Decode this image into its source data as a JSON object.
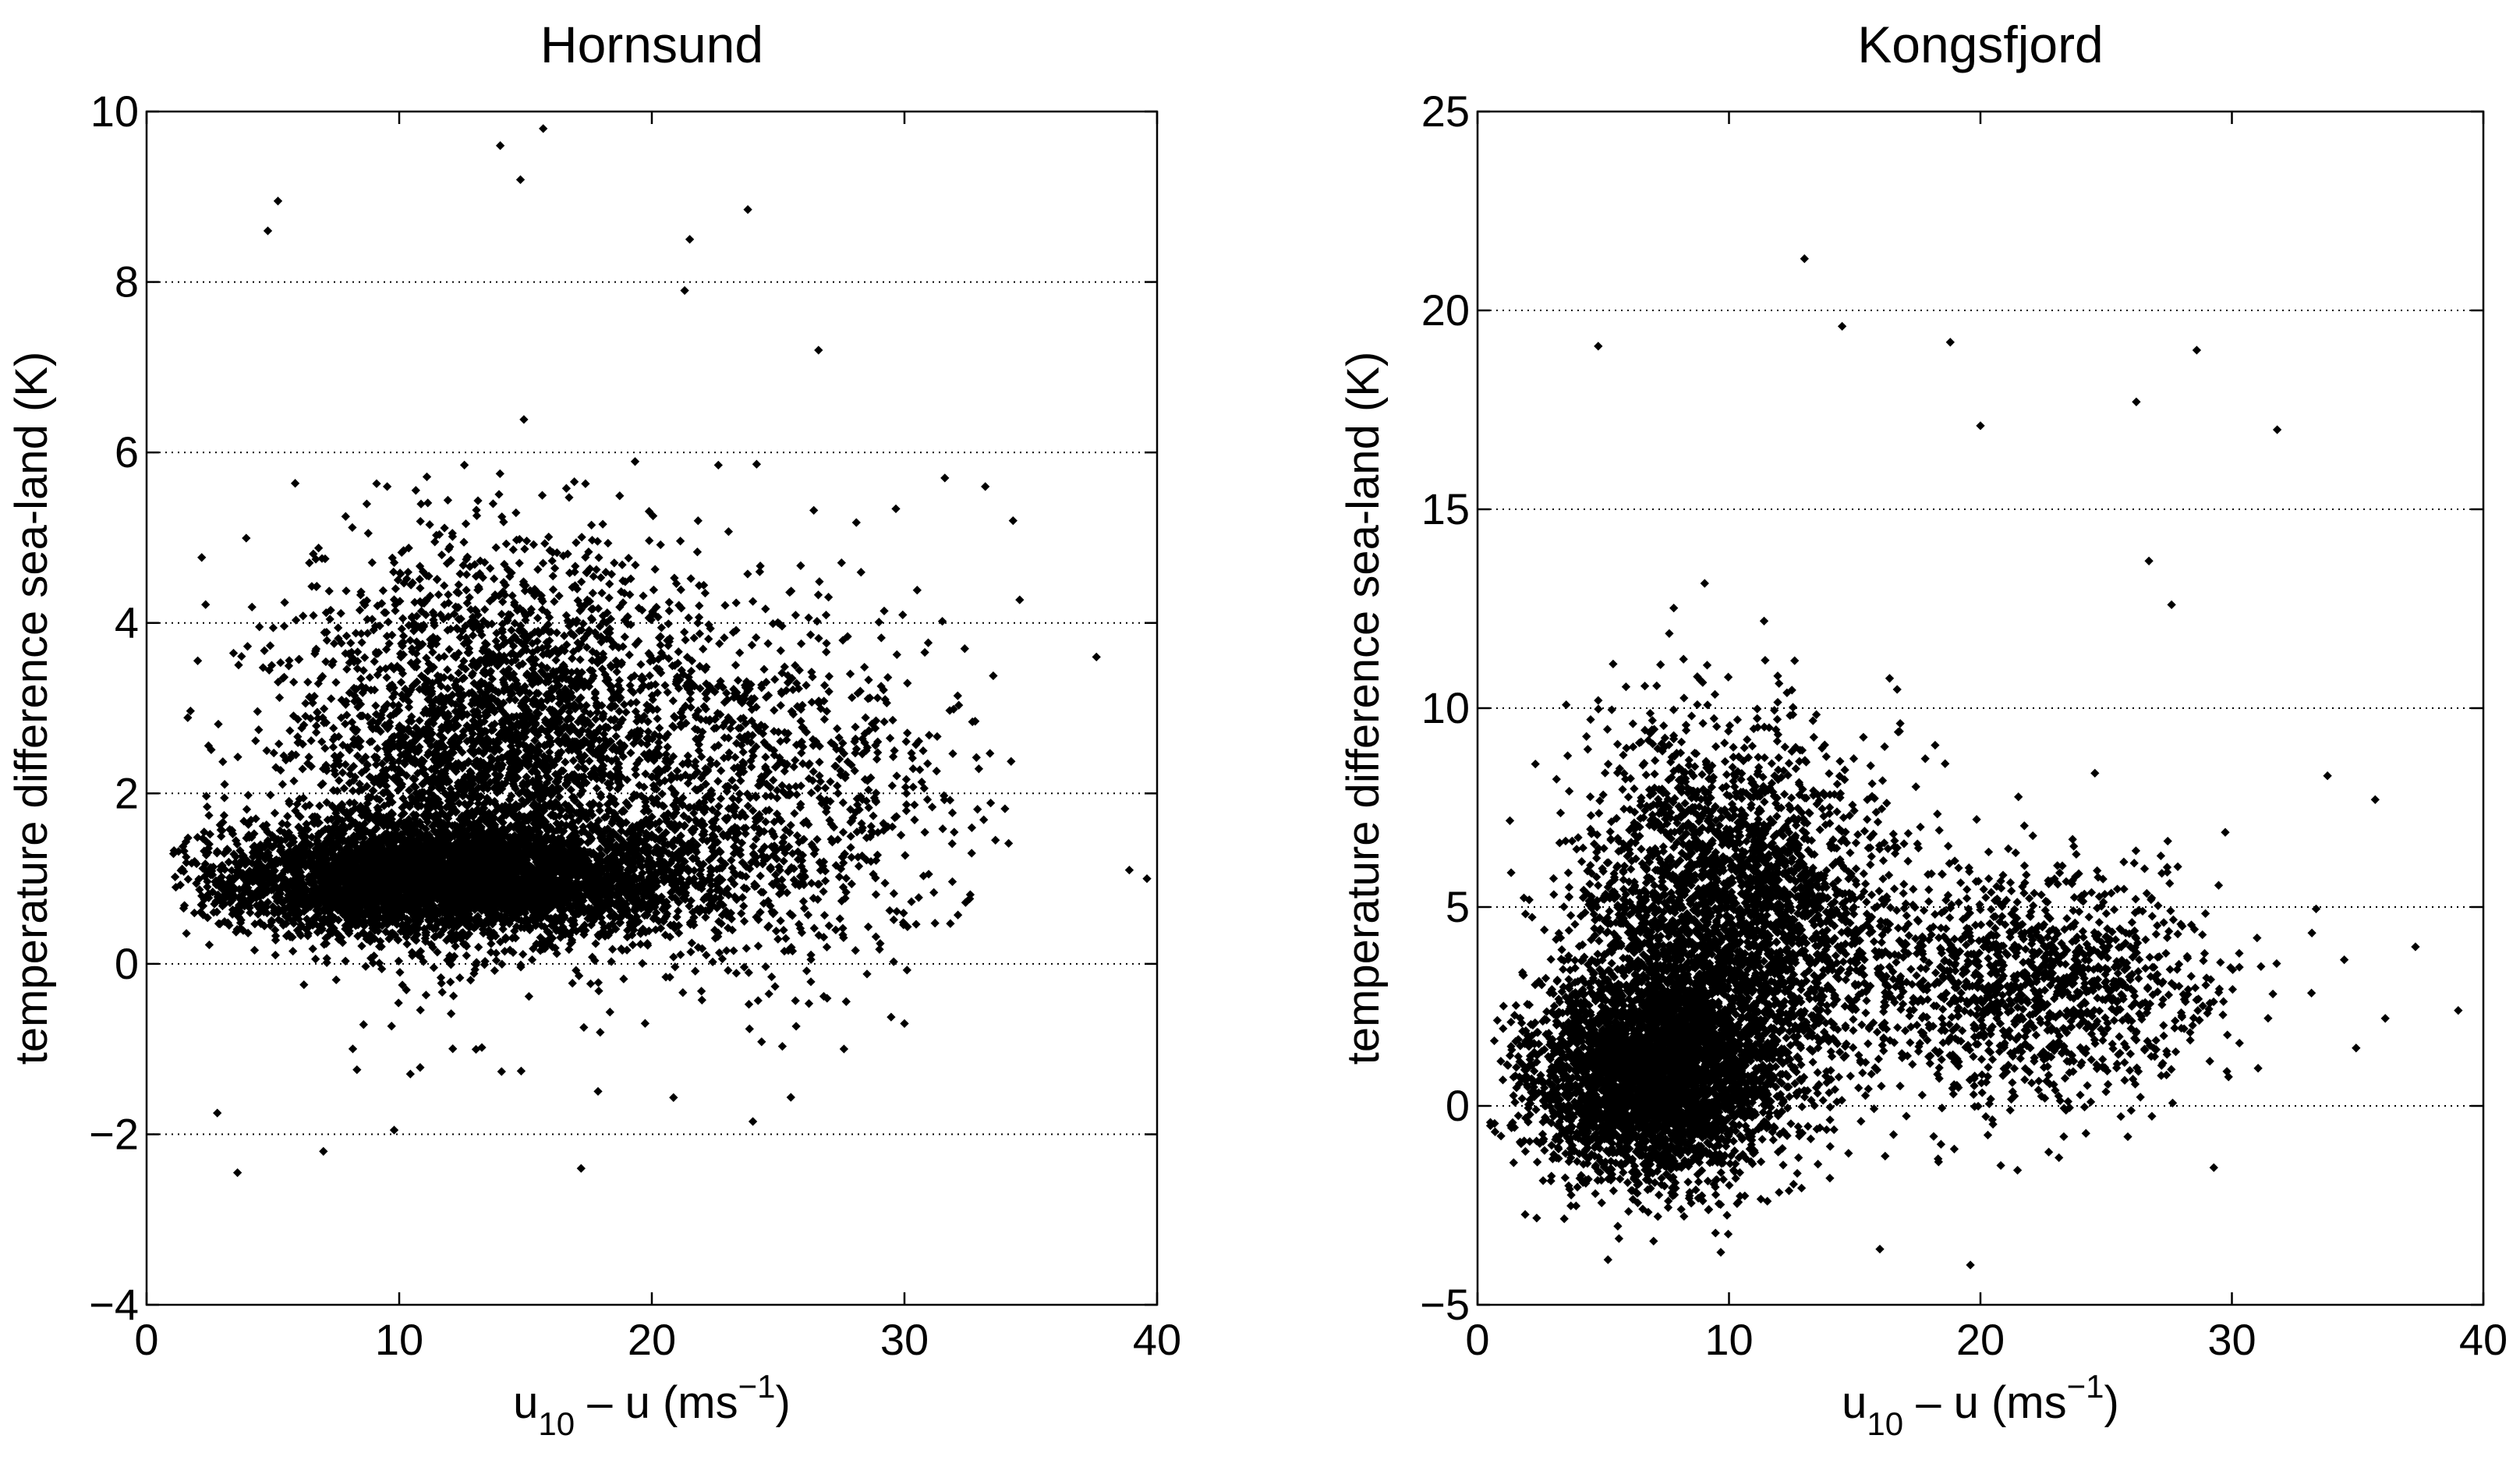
{
  "chart_data": [
    {
      "type": "scatter",
      "title": "Hornsund",
      "xlabel": {
        "base": "u",
        "base_sub": "10",
        "rest": " – u (ms",
        "sup": "−1",
        "close": ")"
      },
      "ylabel": "temperature difference sea-land (K)",
      "xlim": [
        0,
        40
      ],
      "ylim": [
        -4,
        10
      ],
      "xticks": [
        0,
        10,
        20,
        30,
        40
      ],
      "xtick_labels": [
        "0",
        "10",
        "20",
        "30",
        "40"
      ],
      "yticks": [
        -4,
        -2,
        0,
        2,
        4,
        6,
        8,
        10
      ],
      "ytick_labels": [
        "−4",
        "−2",
        "0",
        "2",
        "4",
        "6",
        "8",
        "10"
      ],
      "grid": "horizontal dotted",
      "marker_color": "#000000",
      "approximate_point_count": 9000,
      "point_clusters": [
        {
          "center": [
            12,
            1.0
          ],
          "spread": [
            8,
            0.55
          ],
          "weight": 0.55
        },
        {
          "center": [
            14,
            2.5
          ],
          "spread": [
            7,
            2.0
          ],
          "weight": 0.35
        },
        {
          "center": [
            25,
            2.0
          ],
          "spread": [
            6,
            1.8
          ],
          "weight": 0.1
        }
      ],
      "x_domain_of_points": [
        1,
        40
      ],
      "notable_points": [
        {
          "x": 15.7,
          "y": 9.8
        },
        {
          "x": 14.0,
          "y": 9.6
        },
        {
          "x": 14.8,
          "y": 9.2
        },
        {
          "x": 5.2,
          "y": 8.95
        },
        {
          "x": 23.8,
          "y": 8.85
        },
        {
          "x": 4.8,
          "y": 8.6
        },
        {
          "x": 3.6,
          "y": -2.45
        },
        {
          "x": 7.0,
          "y": -2.2
        },
        {
          "x": 17.2,
          "y": -2.4
        },
        {
          "x": 24.0,
          "y": -1.85
        },
        {
          "x": 2.8,
          "y": -1.75
        },
        {
          "x": 9.8,
          "y": -1.95
        },
        {
          "x": 30.0,
          "y": -0.7
        },
        {
          "x": 37.6,
          "y": 3.6
        },
        {
          "x": 34.3,
          "y": 5.2
        },
        {
          "x": 39.6,
          "y": 1.0
        },
        {
          "x": 38.9,
          "y": 1.1
        },
        {
          "x": 26.6,
          "y": 7.2
        },
        {
          "x": 21.5,
          "y": 8.5
        },
        {
          "x": 21.3,
          "y": 7.9
        },
        {
          "x": 33.2,
          "y": 5.6
        },
        {
          "x": 31.6,
          "y": 5.7
        }
      ]
    },
    {
      "type": "scatter",
      "title": "Kongsfjord",
      "xlabel": {
        "base": "u",
        "base_sub": "10",
        "rest": " – u (ms",
        "sup": "−1",
        "close": ")"
      },
      "ylabel": "temperature difference sea-land (K)",
      "xlim": [
        0,
        40
      ],
      "ylim": [
        -5,
        25
      ],
      "xticks": [
        0,
        10,
        20,
        30,
        40
      ],
      "xtick_labels": [
        "0",
        "10",
        "20",
        "30",
        "40"
      ],
      "yticks": [
        -5,
        0,
        5,
        10,
        15,
        20,
        25
      ],
      "ytick_labels": [
        "−5",
        "0",
        "5",
        "10",
        "15",
        "20",
        "25"
      ],
      "grid": "horizontal dotted",
      "marker_color": "#000000",
      "approximate_point_count": 8000,
      "point_clusters": [
        {
          "center": [
            7,
            0.8
          ],
          "spread": [
            4,
            2.2
          ],
          "weight": 0.45
        },
        {
          "center": [
            10,
            4.5
          ],
          "spread": [
            5,
            4.0
          ],
          "weight": 0.4
        },
        {
          "center": [
            22,
            3.0
          ],
          "spread": [
            6,
            2.5
          ],
          "weight": 0.15
        }
      ],
      "x_domain_of_points": [
        0.5,
        39
      ],
      "notable_points": [
        {
          "x": 13.0,
          "y": 21.3
        },
        {
          "x": 14.5,
          "y": 19.6
        },
        {
          "x": 4.8,
          "y": 19.1
        },
        {
          "x": 28.6,
          "y": 19.0
        },
        {
          "x": 20.0,
          "y": 17.1
        },
        {
          "x": 31.8,
          "y": 17.0
        },
        {
          "x": 26.2,
          "y": 17.7
        },
        {
          "x": 18.8,
          "y": 19.2
        },
        {
          "x": 19.6,
          "y": -4.0
        },
        {
          "x": 16.0,
          "y": -3.6
        },
        {
          "x": 7.0,
          "y": -3.4
        },
        {
          "x": 36.1,
          "y": 2.2
        },
        {
          "x": 39.0,
          "y": 2.4
        },
        {
          "x": 35.7,
          "y": 7.7
        },
        {
          "x": 37.3,
          "y": 4.0
        },
        {
          "x": 33.8,
          "y": 8.3
        },
        {
          "x": 27.6,
          "y": 12.6
        },
        {
          "x": 26.7,
          "y": 13.7
        }
      ]
    }
  ]
}
